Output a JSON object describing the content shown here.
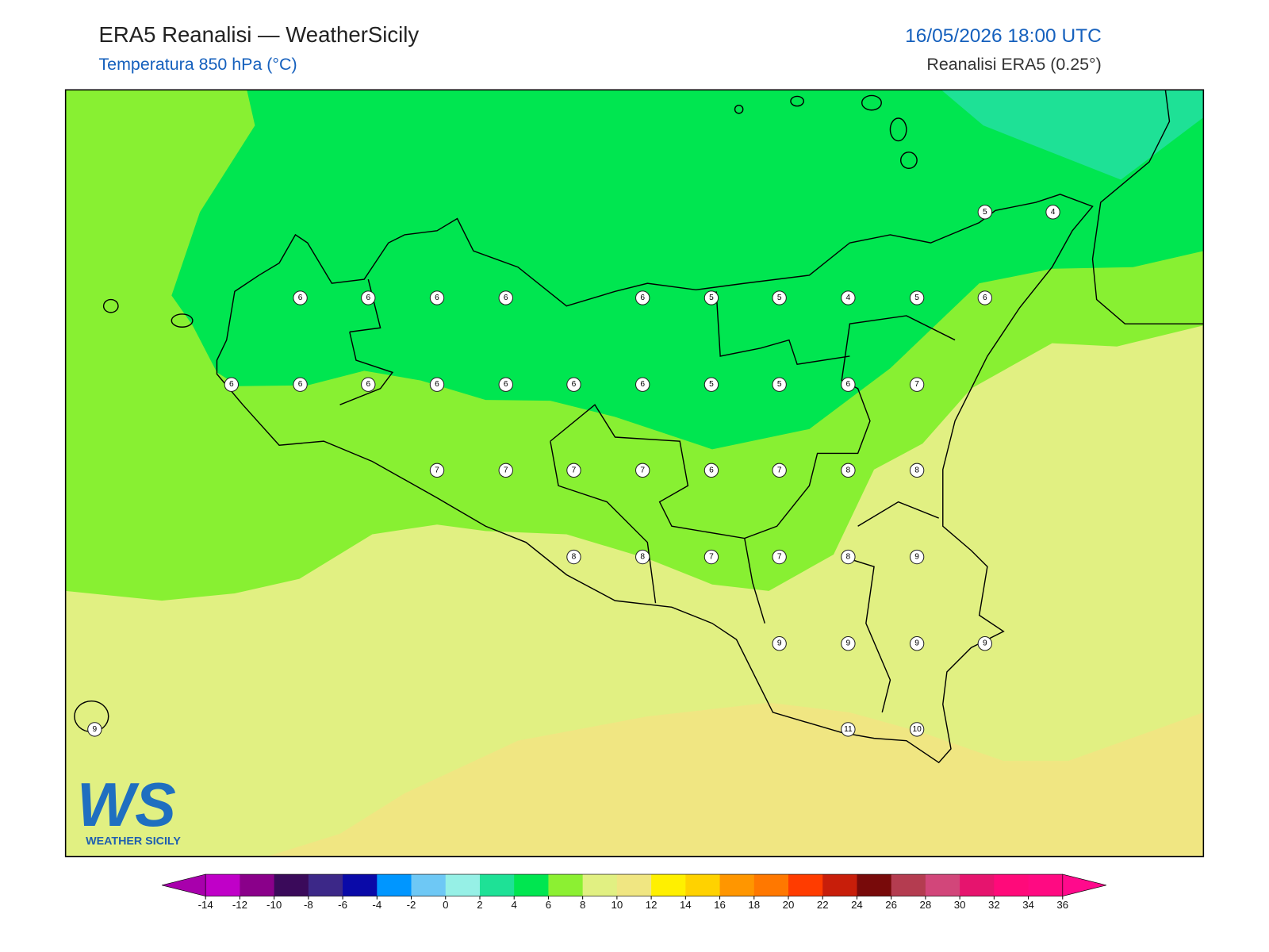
{
  "header": {
    "title": "ERA5 Reanalisi — WeatherSicily",
    "subtitle": "Temperatura 850 hPa (°C)",
    "datetime": "16/05/2026 18:00 UTC",
    "source": "Reanalisi ERA5 (0.25°)"
  },
  "map": {
    "stations": [
      5,
      4,
      6,
      6,
      6,
      6,
      6,
      5,
      5,
      4,
      5,
      6,
      6,
      6,
      6,
      6,
      6,
      6,
      6,
      5,
      5,
      6,
      7,
      7,
      7,
      7,
      7,
      6,
      7,
      8,
      8,
      8,
      8,
      7,
      7,
      8,
      9,
      9,
      9,
      9,
      9,
      9,
      11,
      10
    ]
  },
  "colorbar": {
    "ticks": [
      -14,
      -12,
      -10,
      -8,
      -6,
      -4,
      -2,
      0,
      2,
      4,
      6,
      8,
      10,
      12,
      14,
      16,
      18,
      20,
      22,
      24,
      26,
      28,
      30,
      32,
      34,
      36
    ],
    "under": "#a800ac",
    "over": "#ff0a8c",
    "colors": [
      "#c000c8",
      "#8a008a",
      "#3a0a5a",
      "#3c2888",
      "#0a0aa8",
      "#0096ff",
      "#6ec8f5",
      "#96f0e6",
      "#1ee196",
      "#00e650",
      "#8cf032",
      "#e1f082",
      "#f0e682",
      "#fff000",
      "#ffd200",
      "#ff9600",
      "#ff7800",
      "#ff3c00",
      "#c81e0a",
      "#780a0a",
      "#b43c50",
      "#d2467a",
      "#e6146e",
      "#ff0a7a",
      "#ff0a82"
    ]
  },
  "logo": {
    "mark": "WS",
    "text": "WEATHER SICILY"
  }
}
